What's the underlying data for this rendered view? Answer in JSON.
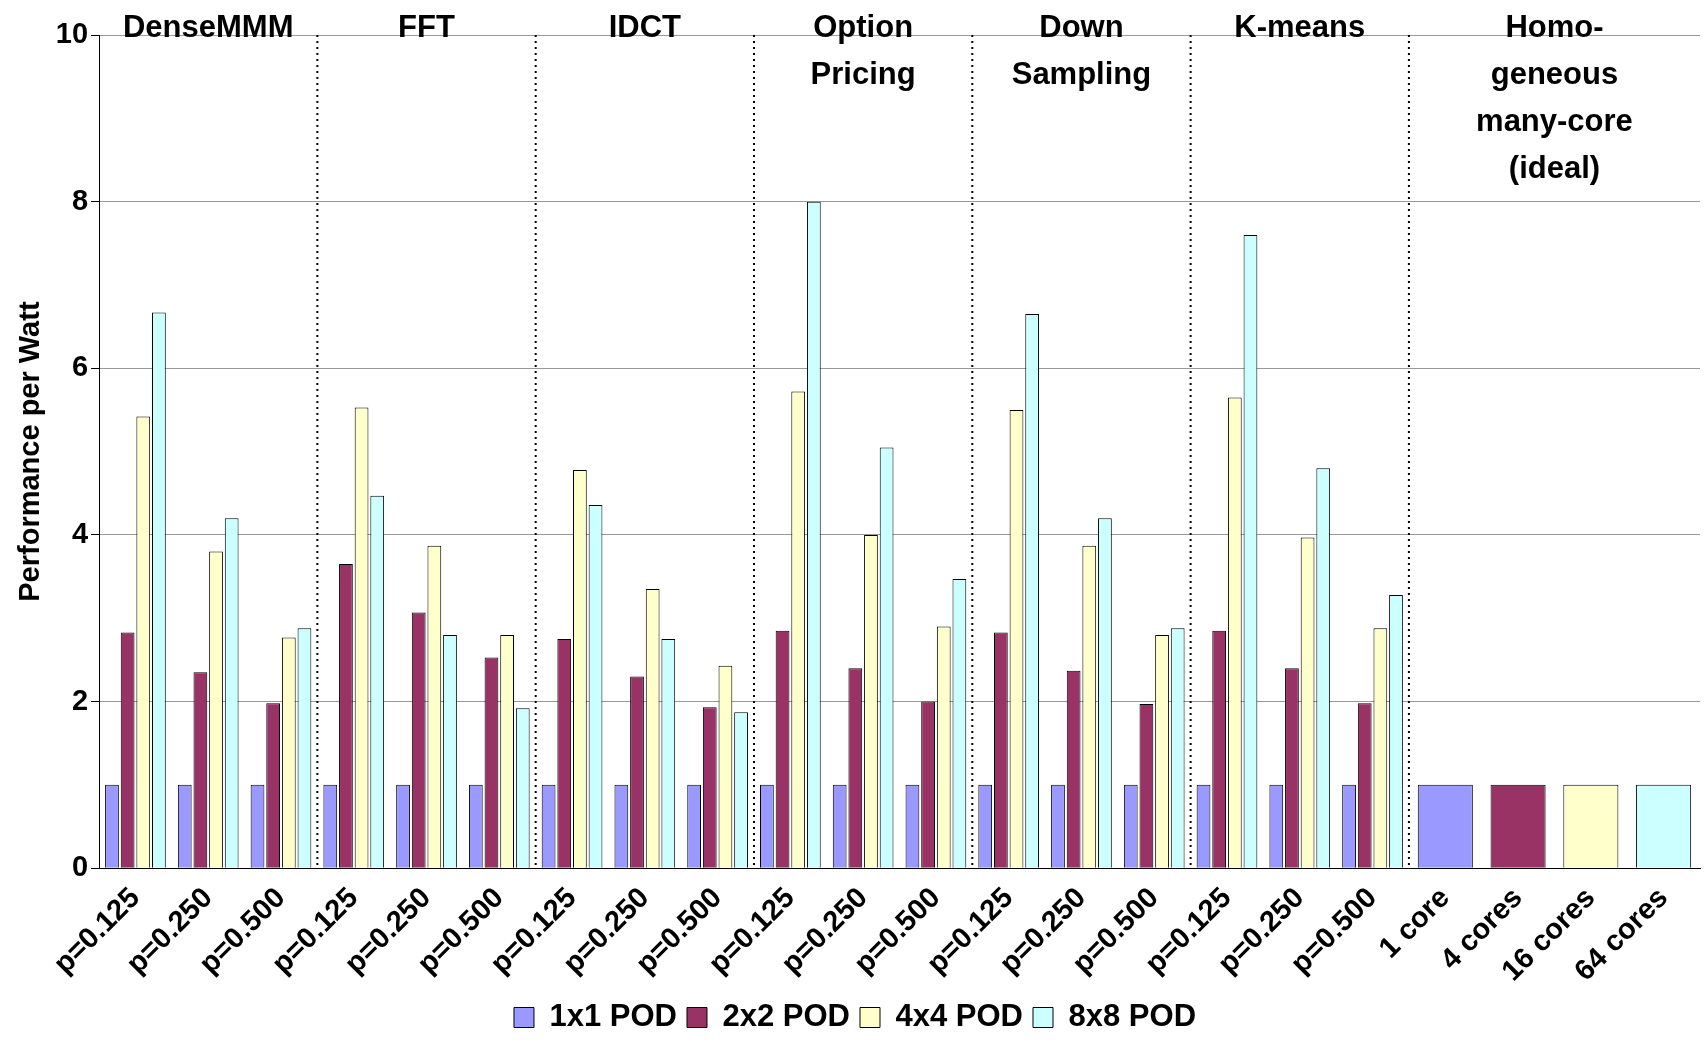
{
  "chart_data": {
    "type": "bar",
    "ylabel": "Performance per Watt",
    "categories": [
      "p=0.125",
      "p=0.250",
      "p=0.500",
      "p=0.125",
      "p=0.250",
      "p=0.500",
      "p=0.125",
      "p=0.250",
      "p=0.500",
      "p=0.125",
      "p=0.250",
      "p=0.500",
      "p=0.125",
      "p=0.250",
      "p=0.500",
      "p=0.125",
      "p=0.250",
      "p=0.500",
      "1 core",
      "4 cores",
      "16 cores",
      "64 cores"
    ],
    "series": [
      {
        "name": "1x1 POD",
        "color": "#9999ff",
        "values": [
          1,
          1,
          1,
          1,
          1,
          1,
          1,
          1,
          1,
          1,
          1,
          1,
          1,
          1,
          1,
          1,
          1,
          1,
          1,
          null,
          null,
          null
        ]
      },
      {
        "name": "2x2 POD",
        "color": "#993366",
        "values": [
          2.83,
          2.35,
          1.98,
          3.65,
          3.07,
          2.53,
          2.75,
          2.3,
          1.93,
          2.85,
          2.4,
          2.0,
          2.83,
          2.37,
          1.97,
          2.85,
          2.4,
          1.98,
          null,
          1,
          null,
          null
        ]
      },
      {
        "name": "4x4 POD",
        "color": "#ffffcc",
        "values": [
          5.42,
          3.8,
          2.77,
          5.53,
          3.87,
          2.8,
          4.78,
          3.35,
          2.43,
          5.72,
          4.0,
          2.9,
          5.5,
          3.87,
          2.8,
          5.65,
          3.97,
          2.88,
          null,
          null,
          1,
          null
        ]
      },
      {
        "name": "8x8 POD",
        "color": "#ccffff",
        "values": [
          6.67,
          4.2,
          2.88,
          4.47,
          2.8,
          1.92,
          4.36,
          2.75,
          1.87,
          8.0,
          5.05,
          3.47,
          6.65,
          4.2,
          2.88,
          7.6,
          4.8,
          3.28,
          null,
          null,
          null,
          1
        ]
      }
    ],
    "annotations": [
      "DenseMMM",
      "FFT",
      "IDCT",
      "Option\nPricing",
      "Down\nSampling",
      "K-means",
      "Homo-\ngeneous\nmany-core\n(ideal)"
    ],
    "ylim": [
      0,
      10
    ],
    "yticks": [
      0,
      2,
      4,
      6,
      8,
      10
    ],
    "grid": "y",
    "legend": "bottom"
  }
}
